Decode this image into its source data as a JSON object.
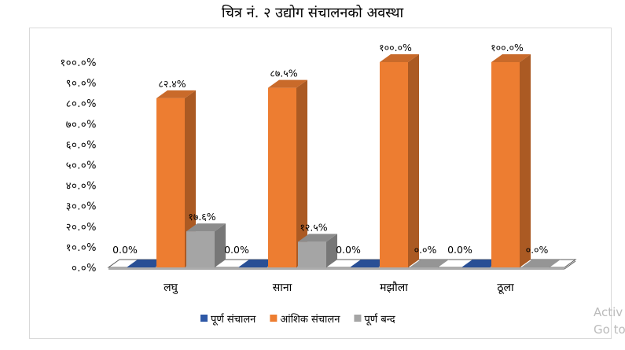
{
  "chart_data": {
    "type": "bar",
    "title": "चित्र नं. २ उद्योग संचालनको अवस्था",
    "categories": [
      "लघु",
      "साना",
      "मझौला",
      "ठूला"
    ],
    "series": [
      {
        "name": "पूर्ण संचालन",
        "color": "#2E58A6",
        "values": [
          0.0,
          0.0,
          0.0,
          0.0
        ],
        "labels": [
          "0.0%",
          "0.0%",
          "0.0%",
          "0.0%"
        ]
      },
      {
        "name": "आंशिक संचालन",
        "color": "#ED7D31",
        "values": [
          82.4,
          87.5,
          100.0,
          100.0
        ],
        "labels": [
          "८२.४%",
          "८७.५%",
          "१००.०%",
          "१००.०%"
        ]
      },
      {
        "name": "पूर्ण बन्द",
        "color": "#A5A5A5",
        "values": [
          17.6,
          12.5,
          0.0,
          0.0
        ],
        "labels": [
          "१७.६%",
          "१२.५%",
          "०.०%",
          "०.०%"
        ]
      }
    ],
    "ylim": [
      0,
      100
    ],
    "yticks": [
      "०.०%",
      "१०.०%",
      "२०.०%",
      "३०.०%",
      "४०.०%",
      "५०.०%",
      "६०.०%",
      "७०.०%",
      "८०.०%",
      "९०.०%",
      "१००.०%"
    ],
    "legend": "bottom",
    "grid": false,
    "style": "3d-column"
  },
  "watermark": {
    "line1": "Activ",
    "line2": "Go to"
  }
}
